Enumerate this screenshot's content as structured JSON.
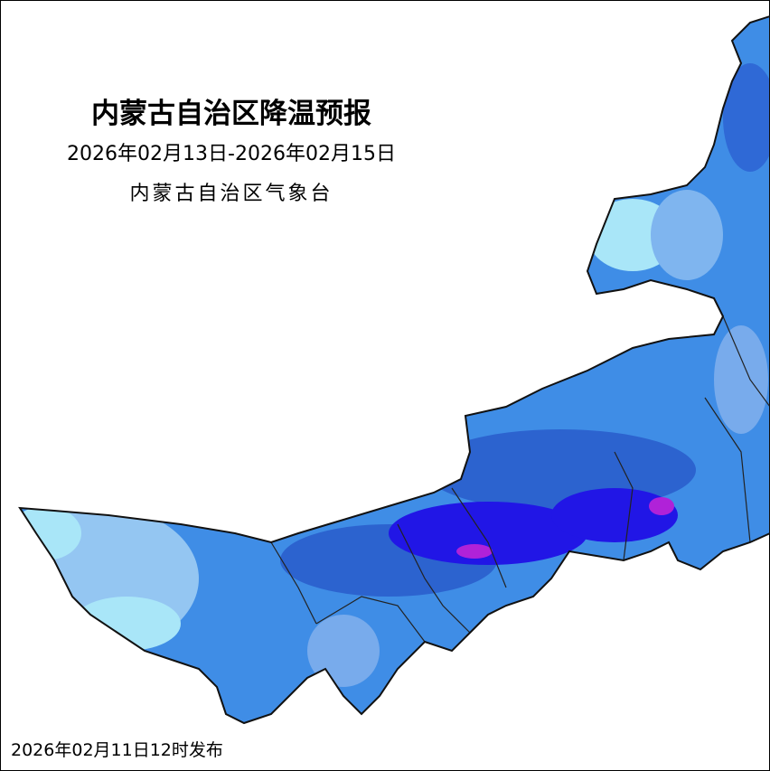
{
  "header": {
    "title": "内蒙古自治区降温预报",
    "period": "2026年02月13日-2026年02月15日",
    "issuer": "内蒙古自治区气象台"
  },
  "footer": {
    "published": "2026年02月11日12时发布"
  }
}
